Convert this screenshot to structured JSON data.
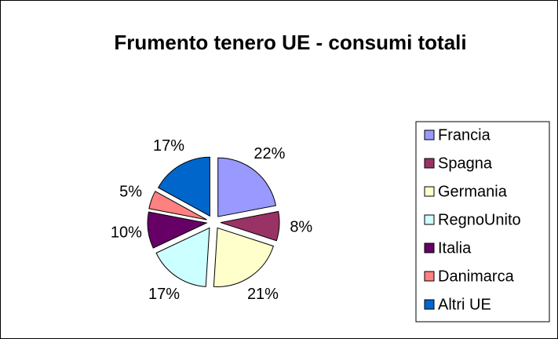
{
  "chart_data": {
    "type": "pie",
    "title": "Frumento tenero UE - consumi totali",
    "categories": [
      "Francia",
      "Spagna",
      "Germania",
      "RegnoUnito",
      "Italia",
      "Danimarca",
      "Altri UE"
    ],
    "values": [
      22,
      8,
      21,
      17,
      10,
      5,
      17
    ],
    "value_labels": [
      "22%",
      "8%",
      "21%",
      "17%",
      "10%",
      "5%",
      "17%"
    ],
    "colors": [
      "#9999ff",
      "#993366",
      "#ffffcc",
      "#ccffff",
      "#660066",
      "#ff8080",
      "#0066cc"
    ],
    "legend": "right"
  }
}
